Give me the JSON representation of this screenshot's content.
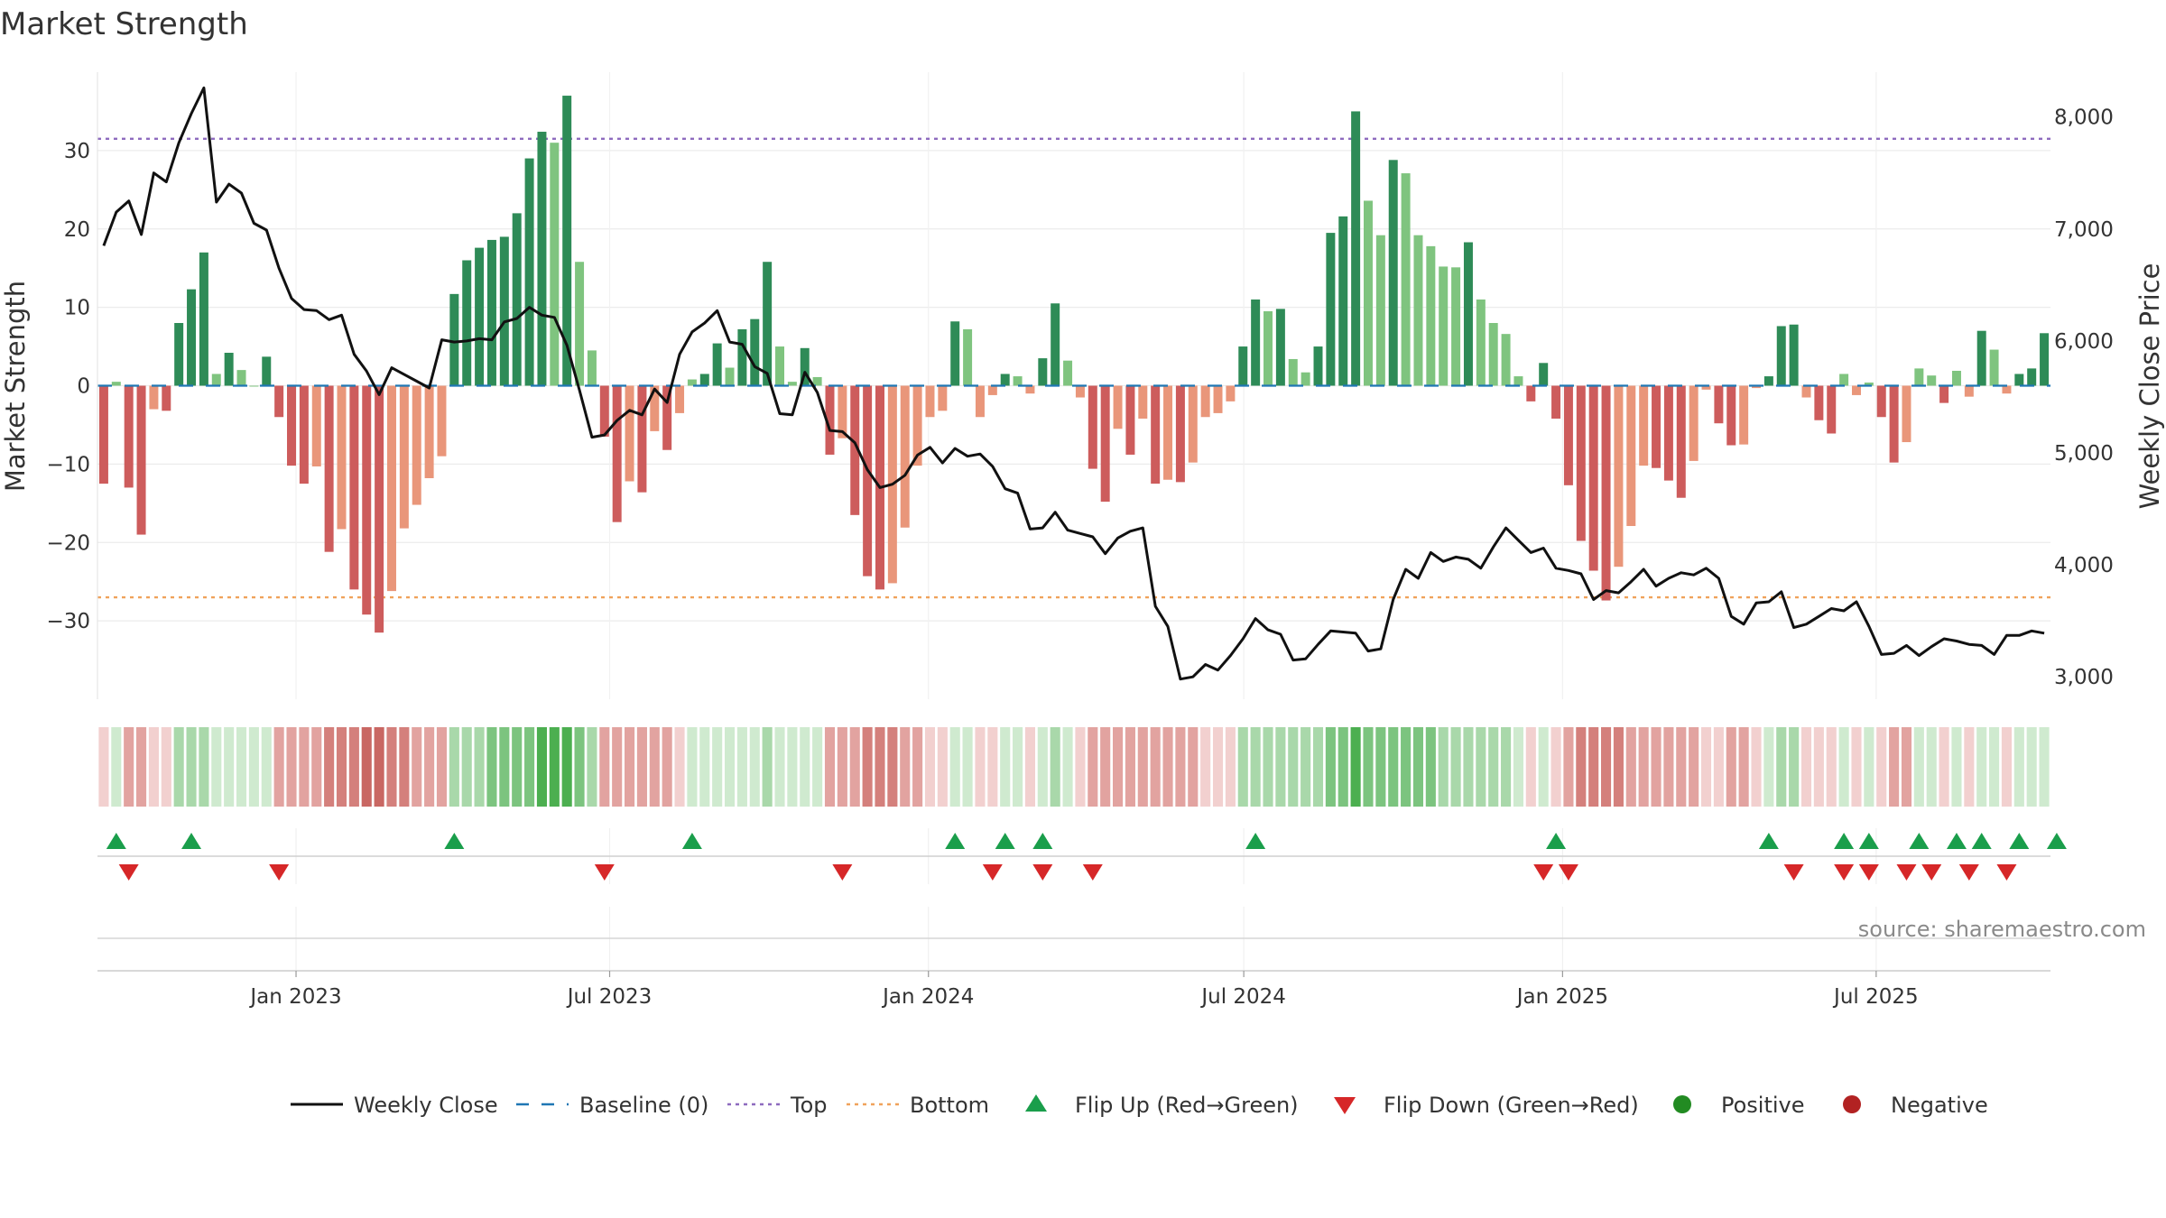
{
  "chart_data": {
    "type": "bar",
    "title": "Market Strength",
    "ylabel": "Market Strength",
    "y2label": "Weekly Close Price",
    "ylim": [
      -40,
      40
    ],
    "y2lim": [
      2800,
      8400
    ],
    "y_ticks": [
      -30,
      -20,
      -10,
      0,
      10,
      20,
      30
    ],
    "y_tick_labels": [
      "−30",
      "−20",
      "−10",
      "0",
      "10",
      "20",
      "30"
    ],
    "y2_ticks": [
      3000,
      4000,
      5000,
      6000,
      7000,
      8000
    ],
    "y2_tick_labels": [
      "3,000",
      "4,000",
      "5,000",
      "6,000",
      "7,000",
      "8,000"
    ],
    "x_start": "2022-09-12",
    "x_end": "2025-10-06",
    "x_ticks": [
      "2023-01-01",
      "2023-07-01",
      "2024-01-01",
      "2024-07-01",
      "2025-01-01",
      "2025-07-01"
    ],
    "x_tick_labels": [
      "Jan 2023",
      "Jul 2023",
      "Jan 2024",
      "Jul 2024",
      "Jan 2025",
      "Jul 2025"
    ],
    "top_line": 31.5,
    "bottom_line": -27,
    "grid": true,
    "legend_position": "bottom",
    "source": "source: sharemaestro.com",
    "colors": {
      "pos_strong": "#2e8b57",
      "pos_light": "#7fc47f",
      "neg_strong": "#cd5c5c",
      "neg_light": "#e9967a",
      "close_line": "#111111",
      "baseline": "#1f77b4",
      "top": "#8e6bbf",
      "bottom": "#f0a25b",
      "flip_up": "#1a9e4b",
      "flip_down": "#d62728",
      "positive": "#228b22",
      "negative": "#b22222"
    },
    "strength": [
      -12.5,
      0.5,
      -13,
      -19,
      -3,
      -3.2,
      8,
      12.3,
      17,
      1.5,
      4.2,
      2,
      0,
      3.7,
      -4,
      -10.2,
      -12.5,
      -10.3,
      -21.2,
      -18.3,
      -26,
      -29.2,
      -31.5,
      -26.2,
      -18.2,
      -15.2,
      -11.8,
      -9,
      11.7,
      16,
      17.6,
      18.6,
      19,
      22,
      29,
      32.4,
      31,
      37,
      15.8,
      4.5,
      -6.5,
      -17.4,
      -12.2,
      -13.6,
      -5.8,
      -8.2,
      -3.5,
      0.8,
      1.5,
      5.4,
      2.3,
      7.2,
      8.5,
      15.8,
      5,
      0.5,
      4.8,
      1.1,
      -8.8,
      -6.7,
      -16.5,
      -24.3,
      -26,
      -25.2,
      -18.1,
      -10.2,
      -4,
      -3.2,
      8.2,
      7.2,
      -4,
      -1.2,
      1.5,
      1.2,
      -1,
      3.5,
      10.5,
      3.2,
      -1.5,
      -10.6,
      -14.8,
      -5.5,
      -8.8,
      -4.2,
      -12.5,
      -12,
      -12.3,
      -9.8,
      -4,
      -3.5,
      -2,
      5,
      11,
      9.5,
      9.8,
      3.4,
      1.7,
      5,
      19.5,
      21.6,
      35,
      23.6,
      19.2,
      28.8,
      27.1,
      19.2,
      17.8,
      15.2,
      15.1,
      18.3,
      11,
      8,
      6.6,
      1.2,
      -2,
      2.9,
      -4.2,
      -12.7,
      -19.8,
      -23.6,
      -27.4,
      -23.1,
      -17.9,
      -10.2,
      -10.5,
      -12.1,
      -14.3,
      -9.6,
      -0.5,
      -4.8,
      -7.6,
      -7.5,
      -0.3,
      1.2,
      7.6,
      7.8,
      -1.5,
      -4.4,
      -6.1,
      1.5,
      -1.2,
      0.4,
      -4,
      -9.8,
      -7.2,
      2.2,
      1.3,
      -2.2,
      1.9,
      -1.4,
      7,
      4.6,
      -1,
      1.5,
      2.2,
      6.7
    ],
    "close": [
      6850,
      7150,
      7250,
      6950,
      7500,
      7420,
      7770,
      8030,
      8260,
      7240,
      7400,
      7320,
      7050,
      6990,
      6650,
      6380,
      6280,
      6270,
      6190,
      6230,
      5880,
      5730,
      5520,
      5760,
      5700,
      5640,
      5580,
      6010,
      5990,
      6000,
      6020,
      6010,
      6170,
      6200,
      6300,
      6230,
      6210,
      5960,
      5560,
      5140,
      5160,
      5290,
      5380,
      5340,
      5570,
      5450,
      5880,
      6080,
      6160,
      6270,
      5990,
      5970,
      5770,
      5710,
      5350,
      5340,
      5720,
      5540,
      5200,
      5190,
      5090,
      4850,
      4690,
      4720,
      4800,
      4980,
      5050,
      4910,
      5040,
      4970,
      4990,
      4880,
      4680,
      4640,
      4320,
      4330,
      4470,
      4310,
      4280,
      4250,
      4100,
      4240,
      4300,
      4330,
      3630,
      3450,
      2980,
      3000,
      3110,
      3060,
      3190,
      3340,
      3520,
      3420,
      3380,
      3150,
      3160,
      3290,
      3410,
      3400,
      3390,
      3230,
      3250,
      3690,
      3960,
      3880,
      4110,
      4030,
      4070,
      4050,
      3970,
      4160,
      4330,
      4220,
      4110,
      4150,
      3970,
      3950,
      3920,
      3690,
      3770,
      3750,
      3850,
      3960,
      3810,
      3880,
      3930,
      3910,
      3970,
      3880,
      3540,
      3470,
      3660,
      3670,
      3760,
      3440,
      3470,
      3540,
      3610,
      3590,
      3670,
      3450,
      3200,
      3210,
      3280,
      3190,
      3270,
      3340,
      3320,
      3290,
      3280,
      3200,
      3370,
      3370,
      3410,
      3390
    ],
    "heat": [
      -1,
      1,
      -2,
      -2,
      -1,
      -1,
      2,
      2,
      2,
      1,
      1,
      1,
      1,
      1,
      -2,
      -2,
      -2,
      -2,
      -3,
      -3,
      -3,
      -4,
      -4,
      -3,
      -3,
      -2,
      -2,
      -2,
      2,
      2,
      2,
      3,
      3,
      3,
      3,
      4,
      4,
      4,
      3,
      2,
      -2,
      -2,
      -2,
      -2,
      -2,
      -2,
      -1,
      1,
      1,
      1,
      1,
      1,
      1,
      2,
      1,
      1,
      1,
      1,
      -2,
      -2,
      -2,
      -3,
      -3,
      -3,
      -2,
      -2,
      -1,
      -1,
      1,
      1,
      -1,
      -1,
      1,
      1,
      -1,
      1,
      2,
      1,
      -1,
      -2,
      -2,
      -2,
      -2,
      -2,
      -2,
      -2,
      -2,
      -2,
      -1,
      -1,
      -1,
      2,
      2,
      2,
      2,
      2,
      2,
      2,
      3,
      3,
      4,
      3,
      3,
      3,
      3,
      3,
      3,
      2,
      2,
      2,
      2,
      2,
      2,
      1,
      -1,
      1,
      -1,
      -2,
      -3,
      -3,
      -3,
      -3,
      -2,
      -2,
      -2,
      -2,
      -2,
      -2,
      -1,
      -1,
      -2,
      -2,
      -1,
      1,
      2,
      2,
      -1,
      -1,
      -1,
      1,
      -1,
      1,
      -1,
      -2,
      -2,
      1,
      1,
      -1,
      1,
      -1,
      1,
      1,
      -1,
      1,
      1,
      1
    ],
    "flip_up_weeks": [
      1,
      7,
      28,
      47,
      68,
      72,
      75,
      92,
      116,
      133,
      139,
      141,
      145,
      148,
      150,
      153,
      156
    ],
    "flip_down_weeks": [
      2,
      14,
      40,
      59,
      71,
      75,
      79,
      115,
      117,
      135,
      139,
      141,
      144,
      146,
      149,
      152
    ],
    "legend": [
      {
        "label": "Weekly Close",
        "kind": "line"
      },
      {
        "label": "Baseline (0)",
        "kind": "dash"
      },
      {
        "label": "Top",
        "kind": "dot-top"
      },
      {
        "label": "Bottom",
        "kind": "dot-bottom"
      },
      {
        "label": "Flip Up (Red→Green)",
        "kind": "tri-up"
      },
      {
        "label": "Flip Down (Green→Red)",
        "kind": "tri-down"
      },
      {
        "label": "Positive",
        "kind": "circle-pos"
      },
      {
        "label": "Negative",
        "kind": "circle-neg"
      }
    ]
  }
}
